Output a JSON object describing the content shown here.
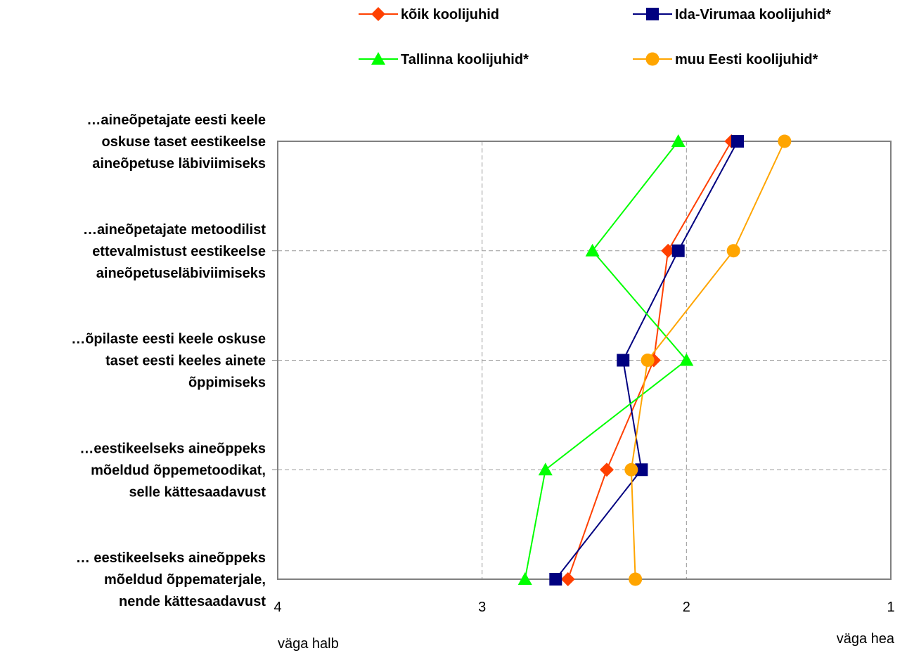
{
  "chart_data": {
    "type": "line",
    "orientation": "horizontal-values",
    "title": "",
    "categories": [
      [
        "…aineõpetajate eesti keele",
        "oskuse taset eestikeelse",
        "aineõpetuse läbiviimiseks"
      ],
      [
        "…aineõpetajate metoodilist",
        "ettevalmistust eestikeelse",
        "aineõpetuseläbiviimiseks"
      ],
      [
        "…õpilaste eesti keele oskuse",
        "taset eesti keeles ainete",
        "õppimiseks"
      ],
      [
        "…eestikeelseks aineõppeks",
        "mõeldud õppemetoodikat,",
        "selle kättesaadavust"
      ],
      [
        "… eestikeelseks aineõppeks",
        "mõeldud õppematerjale,",
        "nende kättesaadavust"
      ]
    ],
    "xlim": [
      4,
      1
    ],
    "x_ticks": [
      "4",
      "3",
      "2",
      "1"
    ],
    "x_tick_values": [
      4,
      3,
      2,
      1
    ],
    "x_end_labels": {
      "left": "väga halb",
      "right": "väga hea"
    },
    "grid": true,
    "legend_position": "top",
    "series": [
      {
        "name": "kõik koolijuhid",
        "color": "#ff4000",
        "marker": "diamond",
        "values": [
          1.78,
          2.09,
          2.16,
          2.39,
          2.58
        ]
      },
      {
        "name": "Ida-Virumaa koolijuhid*",
        "color": "#000080",
        "marker": "square",
        "values": [
          1.75,
          2.04,
          2.31,
          2.22,
          2.64
        ]
      },
      {
        "name": "Tallinna koolijuhid*",
        "color": "#00ff00",
        "marker": "triangle",
        "values": [
          2.04,
          2.46,
          2.0,
          2.69,
          2.79
        ]
      },
      {
        "name": "muu Eesti koolijuhid*",
        "color": "#ffa500",
        "marker": "circle",
        "values": [
          1.52,
          1.77,
          2.19,
          2.27,
          2.25
        ]
      }
    ]
  }
}
